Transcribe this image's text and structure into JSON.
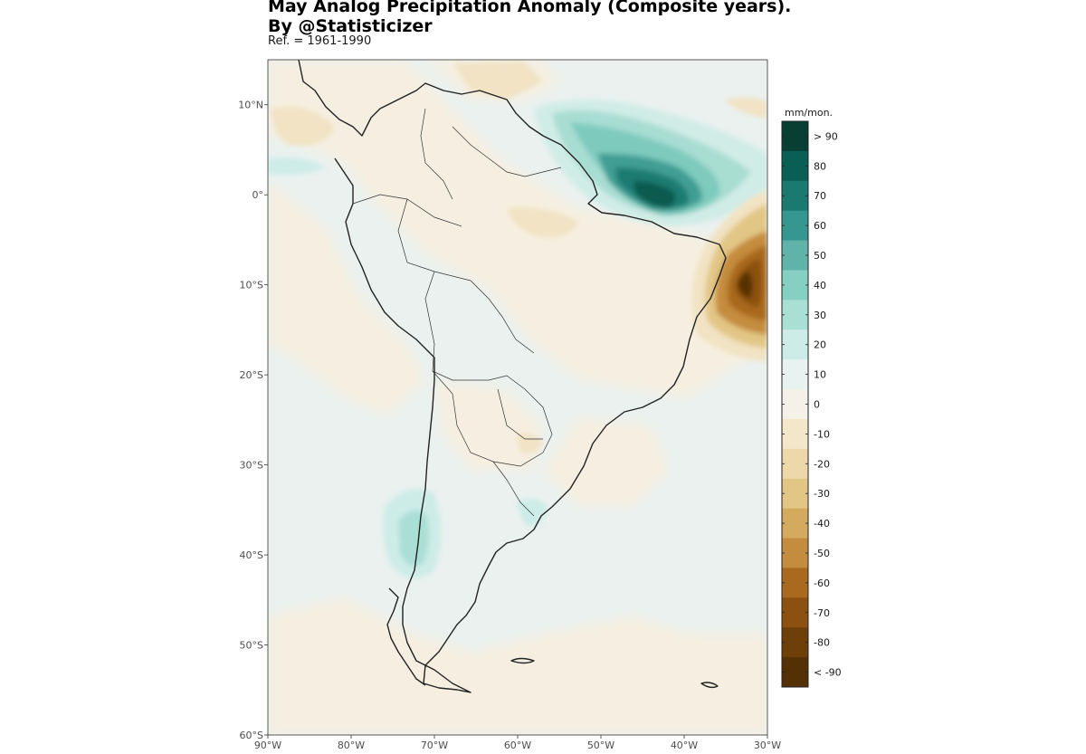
{
  "title_line1": "May Analog Precipitation Anomaly (Composite years).",
  "title_line2": "By @Statisticizer",
  "subtitle": "Ref. = 1961-1990",
  "map": {
    "extent_lon": [
      -90,
      -30
    ],
    "extent_lat": [
      -60,
      15
    ],
    "lon_ticks": [
      {
        "value": -90,
        "label": "90°W"
      },
      {
        "value": -80,
        "label": "80°W"
      },
      {
        "value": -70,
        "label": "70°W"
      },
      {
        "value": -60,
        "label": "60°W"
      },
      {
        "value": -50,
        "label": "50°W"
      },
      {
        "value": -40,
        "label": "40°W"
      },
      {
        "value": -30,
        "label": "30°W"
      }
    ],
    "lat_ticks": [
      {
        "value": 10,
        "label": "10°N"
      },
      {
        "value": 0,
        "label": "0°"
      },
      {
        "value": -10,
        "label": "10°S"
      },
      {
        "value": -20,
        "label": "20°S"
      },
      {
        "value": -30,
        "label": "30°S"
      },
      {
        "value": -40,
        "label": "40°S"
      },
      {
        "value": -50,
        "label": "50°S"
      },
      {
        "value": -60,
        "label": "60°S"
      }
    ]
  },
  "legend": {
    "title": "mm/mon.",
    "labels": [
      "> 90",
      "80",
      "70",
      "60",
      "50",
      "40",
      "30",
      "20",
      "10",
      "0",
      "-10",
      "-20",
      "-30",
      "-40",
      "-50",
      "-60",
      "-70",
      "-80",
      "< -90"
    ],
    "colors": [
      "#073f35",
      "#0a5f54",
      "#1b7a70",
      "#35978f",
      "#5fb3a8",
      "#86cfc3",
      "#aadfd5",
      "#cdece7",
      "#e8f2f1",
      "#f5f1e8",
      "#f3e6c9",
      "#ecd8a9",
      "#e2c686",
      "#d4aa5e",
      "#c48c3e",
      "#a9691f",
      "#8c5110",
      "#6f3f0a",
      "#543005"
    ]
  }
}
